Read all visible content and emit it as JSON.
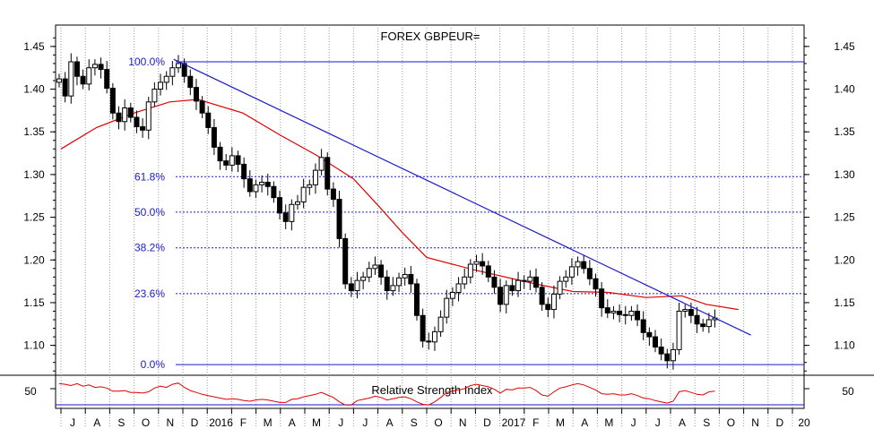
{
  "chart_data": {
    "type": "candlestick",
    "title": "FOREX GBPEUR=",
    "y_axis": {
      "ticks": [
        "1.45",
        "1.40",
        "1.35",
        "1.30",
        "1.25",
        "1.20",
        "1.15",
        "1.10"
      ],
      "tick_values": [
        1.45,
        1.4,
        1.35,
        1.3,
        1.25,
        1.2,
        1.15,
        1.1
      ],
      "ylim": [
        1.065,
        1.475
      ],
      "both_sides": true
    },
    "x_axis": {
      "labels": [
        "J",
        "A",
        "S",
        "O",
        "N",
        "D",
        "2016",
        "F",
        "M",
        "A",
        "M",
        "J",
        "J",
        "A",
        "S",
        "O",
        "N",
        "D",
        "2017",
        "F",
        "M",
        "A",
        "M",
        "J",
        "J",
        "A",
        "S",
        "O",
        "N",
        "D",
        "20"
      ],
      "start": "2015-07",
      "end": "2017-12"
    },
    "fibonacci_levels": [
      {
        "label": "100.0%",
        "value": 1.432
      },
      {
        "label": "61.8%",
        "value": 1.2975
      },
      {
        "label": "50.0%",
        "value": 1.256
      },
      {
        "label": "38.2%",
        "value": 1.2142
      },
      {
        "label": "23.6%",
        "value": 1.1606
      },
      {
        "label": "0.0%",
        "value": 1.0775
      }
    ],
    "trendline": {
      "start": [
        "2015-11-20",
        1.435
      ],
      "end": [
        "2017-11-10",
        1.112
      ]
    },
    "moving_average": {
      "color": "#e00000",
      "points": [
        [
          "2015-07-01",
          1.33
        ],
        [
          "2015-08-15",
          1.355
        ],
        [
          "2015-10-01",
          1.372
        ],
        [
          "2015-11-15",
          1.385
        ],
        [
          "2015-12-20",
          1.388
        ],
        [
          "2016-02-15",
          1.372
        ],
        [
          "2016-04-01",
          1.346
        ],
        [
          "2016-05-15",
          1.323
        ],
        [
          "2016-07-01",
          1.295
        ],
        [
          "2016-08-01",
          1.264
        ],
        [
          "2016-09-01",
          1.232
        ],
        [
          "2016-10-01",
          1.203
        ],
        [
          "2016-12-01",
          1.188
        ],
        [
          "2017-02-15",
          1.172
        ],
        [
          "2017-04-01",
          1.163
        ],
        [
          "2017-05-15",
          1.162
        ],
        [
          "2017-07-01",
          1.156
        ],
        [
          "2017-08-15",
          1.158
        ],
        [
          "2017-09-15",
          1.148
        ],
        [
          "2017-10-25",
          1.142
        ]
      ]
    },
    "series": [
      {
        "values": [
          1.412,
          1.392,
          1.432,
          1.415,
          1.406,
          1.425,
          1.429,
          1.423,
          1.401,
          1.372,
          1.362,
          1.378,
          1.367,
          1.356,
          1.352,
          1.385,
          1.4,
          1.408,
          1.415,
          1.425,
          1.43,
          1.415,
          1.402,
          1.386,
          1.372,
          1.355,
          1.332,
          1.316,
          1.311,
          1.322,
          1.312,
          1.295,
          1.28,
          1.288,
          1.291,
          1.286,
          1.273,
          1.255,
          1.245,
          1.265,
          1.268,
          1.285,
          1.288,
          1.305,
          1.32,
          1.283,
          1.271,
          1.225,
          1.172,
          1.164,
          1.176,
          1.18,
          1.19,
          1.194,
          1.18,
          1.164,
          1.17,
          1.179,
          1.183,
          1.172,
          1.135,
          1.105,
          1.104,
          1.116,
          1.133,
          1.155,
          1.162,
          1.172,
          1.18,
          1.195,
          1.198,
          1.193,
          1.18,
          1.168,
          1.148,
          1.17,
          1.164,
          1.176,
          1.175,
          1.18,
          1.168,
          1.148,
          1.142,
          1.16,
          1.175,
          1.18,
          1.192,
          1.198,
          1.19,
          1.178,
          1.166,
          1.144,
          1.138,
          1.14,
          1.136,
          1.135,
          1.14,
          1.13,
          1.115,
          1.11,
          1.098,
          1.09,
          1.082,
          1.095,
          1.14,
          1.142,
          1.135,
          1.125,
          1.122,
          1.13,
          1.132
        ]
      },
      {
        "name": "Relative Strength Index",
        "values": [
          58,
          57,
          55,
          58,
          54,
          56,
          52,
          53,
          51,
          46,
          46,
          47,
          44,
          44,
          43,
          45,
          51,
          54,
          52,
          57,
          59,
          52,
          47,
          44,
          41,
          39,
          37,
          35,
          33,
          34,
          33,
          31,
          30,
          32,
          33,
          32,
          30,
          28,
          28,
          33,
          34,
          37,
          39,
          41,
          44,
          40,
          36,
          29,
          24,
          24,
          31,
          33,
          35,
          38,
          36,
          32,
          34,
          36,
          37,
          34,
          29,
          25,
          24,
          29,
          36,
          44,
          46,
          48,
          50,
          55,
          57,
          55,
          53,
          49,
          43,
          49,
          48,
          51,
          51,
          52,
          47,
          40,
          38,
          45,
          51,
          53,
          56,
          58,
          56,
          52,
          48,
          42,
          41,
          42,
          40,
          40,
          42,
          39,
          35,
          34,
          31,
          29,
          27,
          30,
          45,
          47,
          44,
          41,
          40,
          45,
          46
        ]
      }
    ],
    "rsi_panel": {
      "title": "Relative Strength Index",
      "tick_label": "50",
      "level": 50
    }
  }
}
